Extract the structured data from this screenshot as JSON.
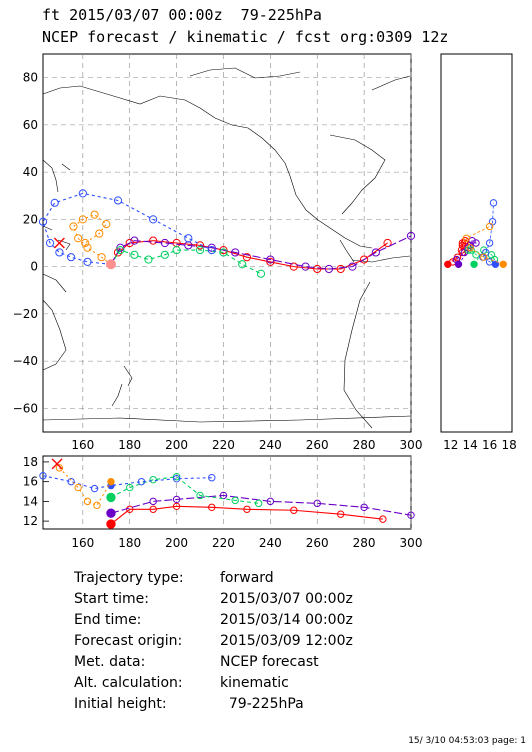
{
  "header": {
    "line1": "ft 2015/03/07 00:00z  79-225hPa",
    "line2": "NCEP forecast / kinematic / fcst org:0309 12z"
  },
  "map": {
    "lon_ticks": [
      "160",
      "180",
      "200",
      "220",
      "240",
      "260",
      "280",
      "300"
    ],
    "lat_ticks": [
      "80",
      "60",
      "40",
      "20",
      "0",
      "−20",
      "−40",
      "−60"
    ]
  },
  "side_panel": {
    "x_ticks": [
      "12",
      "14",
      "16",
      "18"
    ]
  },
  "height_panel": {
    "y_ticks": [
      "18",
      "16",
      "14",
      "12"
    ],
    "x_ticks": [
      "160",
      "180",
      "200",
      "220",
      "240",
      "260",
      "280",
      "300"
    ]
  },
  "info": [
    {
      "key": "Trajectory type:",
      "value": "forward"
    },
    {
      "key": "Start time:",
      "value": "2015/03/07 00:00z"
    },
    {
      "key": "End time:",
      "value": "2015/03/14 00:00z"
    },
    {
      "key": "Forecast origin:",
      "value": "2015/03/09 12:00z"
    },
    {
      "key": "Met. data:",
      "value": "NCEP forecast"
    },
    {
      "key": "Alt. calculation:",
      "value": "kinematic"
    },
    {
      "key": "Initial height:",
      "value": "  79-225hPa"
    }
  ],
  "footer": "15/ 3/10 04:53:03 page: 1",
  "colors": {
    "red": "#ff0000",
    "blue": "#3050ff",
    "orange": "#ff8c00",
    "green": "#00d060",
    "purple": "#6a00c8",
    "pink": "#ff9090"
  },
  "chart_data": {
    "type": "line",
    "xlim": [
      143,
      300
    ],
    "ylim": [
      -70,
      90
    ],
    "grid": true,
    "series": [
      {
        "color": "#ff0000",
        "x": [
          172,
          175,
          180,
          190,
          200,
          210,
          220,
          230,
          240,
          250,
          260,
          270,
          280,
          290
        ],
        "y": [
          1,
          6,
          10,
          11,
          10,
          9,
          7,
          4,
          2,
          0,
          -1,
          -1,
          3,
          10
        ]
      },
      {
        "color": "#6a00c8",
        "x": [
          172,
          176,
          182,
          195,
          205,
          215,
          225,
          240,
          255,
          265,
          275,
          285,
          300
        ],
        "y": [
          1,
          8,
          11,
          10,
          9,
          8,
          6,
          3,
          0,
          -1,
          0,
          6,
          13
        ]
      },
      {
        "color": "#00d060",
        "x": [
          172,
          176,
          182,
          188,
          195,
          200,
          210,
          220,
          228,
          236
        ],
        "y": [
          1,
          7,
          5,
          3,
          5,
          7,
          7,
          6,
          1,
          -3
        ]
      },
      {
        "color": "#3050ff",
        "x": [
          172,
          162,
          155,
          150,
          146,
          143,
          148,
          160,
          175,
          190,
          205,
          215
        ],
        "y": [
          1,
          2,
          4,
          6,
          10,
          19,
          27,
          31,
          28,
          20,
          12,
          7
        ]
      },
      {
        "color": "#ff8c00",
        "x": [
          172,
          168,
          162,
          158,
          156,
          160,
          165,
          170,
          167,
          161
        ],
        "y": [
          1,
          4,
          8,
          12,
          17,
          20,
          22,
          18,
          14,
          10
        ]
      }
    ],
    "height_series": [
      {
        "color": "#ff0000",
        "x": [
          172,
          180,
          190,
          200,
          215,
          230,
          250,
          270,
          288
        ],
        "y": [
          11.7,
          13.2,
          13.2,
          13.5,
          13.4,
          13.2,
          13.1,
          12.7,
          12.2
        ]
      },
      {
        "color": "#6a00c8",
        "x": [
          172,
          190,
          200,
          220,
          240,
          260,
          280,
          300
        ],
        "y": [
          12.8,
          14.0,
          14.2,
          14.6,
          14.0,
          13.8,
          13.4,
          12.6
        ]
      },
      {
        "color": "#00d060",
        "x": [
          172,
          180,
          190,
          200,
          210,
          225,
          235
        ],
        "y": [
          14.4,
          15.4,
          16.2,
          16.5,
          14.6,
          14.1,
          13.8
        ]
      },
      {
        "color": "#3050ff",
        "x": [
          143,
          155,
          165,
          172,
          185,
          200,
          215
        ],
        "y": [
          16.6,
          16.0,
          15.3,
          15.6,
          16.0,
          16.3,
          16.4
        ]
      },
      {
        "color": "#ff8c00",
        "x": [
          150,
          158,
          162,
          166,
          172
        ],
        "y": [
          17.4,
          15.4,
          14.0,
          13.6,
          16.0
        ]
      }
    ]
  }
}
